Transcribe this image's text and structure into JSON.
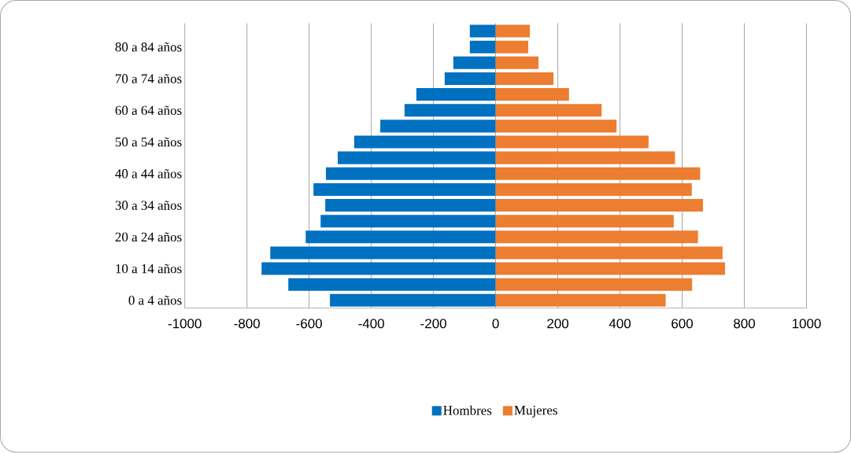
{
  "chart_data": {
    "type": "bar",
    "orientation": "horizontal",
    "categories": [
      null,
      "80 a 84 años",
      null,
      "70 a 74 años",
      null,
      "60 a 64 años",
      null,
      "50 a 54 años",
      null,
      "40 a 44 años",
      null,
      "30 a 34 años",
      null,
      "20 a 24 años",
      null,
      "10 a 14 años",
      null,
      "0 a 4 años"
    ],
    "series": [
      {
        "name": "Hombres",
        "color": "#0070c0",
        "values": [
          -83,
          -83,
          -136,
          -164,
          -255,
          -293,
          -371,
          -455,
          -508,
          -546,
          -586,
          -548,
          -563,
          -611,
          -725,
          -753,
          -667,
          -533
        ]
      },
      {
        "name": "Mujeres",
        "color": "#ed7d31",
        "values": [
          110,
          105,
          138,
          186,
          236,
          341,
          389,
          492,
          577,
          658,
          631,
          667,
          573,
          651,
          730,
          738,
          632,
          547
        ]
      }
    ],
    "xlim": [
      -1000,
      1000
    ],
    "xticks": [
      -1000,
      -800,
      -600,
      -400,
      -200,
      0,
      200,
      400,
      600,
      800,
      1000
    ],
    "stacked": true,
    "grid": "x",
    "legend": "bottom"
  }
}
